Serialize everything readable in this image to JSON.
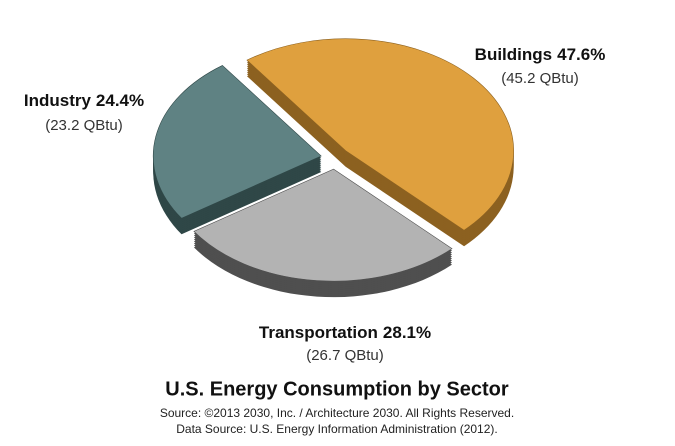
{
  "chart_data": {
    "type": "pie",
    "title": "U.S. Energy Consumption by Sector",
    "source": "Source: ©2013 2030, Inc. / Architecture 2030. All Rights Reserved.",
    "data_source": "Data Source: U.S. Energy Information Administration (2012).",
    "categories": [
      "Buildings",
      "Transportation",
      "Industry"
    ],
    "values": [
      47.6,
      28.1,
      24.4
    ],
    "value_labels": [
      "47.6%",
      "28.1%",
      "24.4%"
    ],
    "qbtu": [
      45.2,
      26.7,
      23.2
    ],
    "qbtu_labels": [
      "(45.2 QBtu)",
      "(26.7 QBtu)",
      "(23.2 QBtu)"
    ],
    "colors": [
      "#dfa03e",
      "#b3b3b3",
      "#5f8283"
    ],
    "side_colors": [
      "#8c6120",
      "#4f4f4f",
      "#2f4747"
    ]
  }
}
